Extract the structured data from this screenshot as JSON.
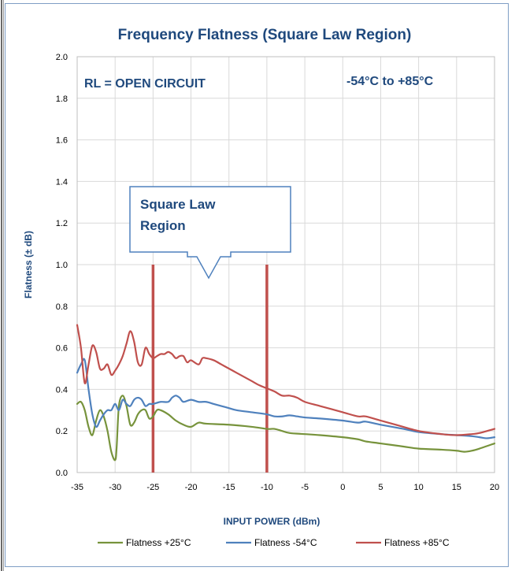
{
  "chart_data": {
    "type": "line",
    "title": "Frequency Flatness (Square Law Region)",
    "xlabel": "INPUT POWER (dBm)",
    "ylabel": "Flatness (± dB)",
    "xlim": [
      -35,
      20
    ],
    "ylim": [
      0,
      2.0
    ],
    "x_ticks": [
      -35,
      -30,
      -25,
      -20,
      -15,
      -10,
      -5,
      0,
      5,
      10,
      15,
      20
    ],
    "x_tick_labels": [
      "-35",
      "-30",
      "-25",
      "-20",
      "-15",
      "-10",
      "-5",
      "0",
      "5",
      "10",
      "15",
      "20"
    ],
    "y_ticks": [
      0,
      0.2,
      0.4,
      0.6,
      0.8,
      1.0,
      1.2,
      1.4,
      1.6,
      1.8,
      2.0
    ],
    "y_tick_labels": [
      "0.0",
      "0.2",
      "0.4",
      "0.6",
      "0.8",
      "1.0",
      "1.2",
      "1.4",
      "1.6",
      "1.8",
      "2.0"
    ],
    "grid": true,
    "legend_position": "bottom",
    "annotations": {
      "rl": "RL = OPEN CIRCUIT",
      "temp_range": "-54°C to +85°C",
      "callout_line1": "Square Law",
      "callout_line2": "Region"
    },
    "region_markers": [
      {
        "x": -25,
        "y_top": 1.0,
        "color": "#c0504d"
      },
      {
        "x": -10,
        "y_top": 1.0,
        "color": "#c0504d"
      }
    ],
    "series": [
      {
        "name": "Flatness +25°C",
        "color": "#77933c",
        "points": [
          [
            -35,
            0.33
          ],
          [
            -34.5,
            0.34
          ],
          [
            -34,
            0.3
          ],
          [
            -33.5,
            0.22
          ],
          [
            -33,
            0.18
          ],
          [
            -32.5,
            0.25
          ],
          [
            -32,
            0.3
          ],
          [
            -31.5,
            0.27
          ],
          [
            -31,
            0.2
          ],
          [
            -30.5,
            0.1
          ],
          [
            -30,
            0.06
          ],
          [
            -29.8,
            0.12
          ],
          [
            -29.5,
            0.32
          ],
          [
            -29,
            0.37
          ],
          [
            -28.5,
            0.32
          ],
          [
            -28,
            0.23
          ],
          [
            -27.5,
            0.24
          ],
          [
            -27,
            0.28
          ],
          [
            -26.5,
            0.3
          ],
          [
            -26,
            0.3
          ],
          [
            -25.5,
            0.26
          ],
          [
            -25,
            0.27
          ],
          [
            -24.5,
            0.3
          ],
          [
            -24,
            0.3
          ],
          [
            -23,
            0.28
          ],
          [
            -22,
            0.25
          ],
          [
            -21,
            0.23
          ],
          [
            -20,
            0.22
          ],
          [
            -19,
            0.24
          ],
          [
            -18,
            0.235
          ],
          [
            -15,
            0.23
          ],
          [
            -12,
            0.22
          ],
          [
            -10,
            0.21
          ],
          [
            -9,
            0.21
          ],
          [
            -8,
            0.2
          ],
          [
            -7,
            0.19
          ],
          [
            -5,
            0.185
          ],
          [
            -3,
            0.18
          ],
          [
            0,
            0.17
          ],
          [
            2,
            0.16
          ],
          [
            3,
            0.15
          ],
          [
            5,
            0.14
          ],
          [
            8,
            0.125
          ],
          [
            10,
            0.115
          ],
          [
            13,
            0.11
          ],
          [
            15,
            0.105
          ],
          [
            16,
            0.1
          ],
          [
            17,
            0.105
          ],
          [
            18,
            0.115
          ],
          [
            20,
            0.14
          ]
        ]
      },
      {
        "name": "Flatness -54°C",
        "color": "#4f81bd",
        "points": [
          [
            -35,
            0.48
          ],
          [
            -34.5,
            0.52
          ],
          [
            -34,
            0.54
          ],
          [
            -33.5,
            0.4
          ],
          [
            -33,
            0.28
          ],
          [
            -32.5,
            0.22
          ],
          [
            -32,
            0.25
          ],
          [
            -31.5,
            0.28
          ],
          [
            -31,
            0.3
          ],
          [
            -30.5,
            0.3
          ],
          [
            -30,
            0.33
          ],
          [
            -29.5,
            0.3
          ],
          [
            -29,
            0.35
          ],
          [
            -28.5,
            0.33
          ],
          [
            -28,
            0.32
          ],
          [
            -27.5,
            0.35
          ],
          [
            -27,
            0.36
          ],
          [
            -26.5,
            0.35
          ],
          [
            -26,
            0.32
          ],
          [
            -25.5,
            0.33
          ],
          [
            -25,
            0.33
          ],
          [
            -24,
            0.34
          ],
          [
            -23,
            0.34
          ],
          [
            -22.5,
            0.36
          ],
          [
            -22,
            0.37
          ],
          [
            -21.5,
            0.36
          ],
          [
            -21,
            0.34
          ],
          [
            -20,
            0.35
          ],
          [
            -19,
            0.34
          ],
          [
            -18,
            0.34
          ],
          [
            -17,
            0.33
          ],
          [
            -16,
            0.32
          ],
          [
            -15,
            0.31
          ],
          [
            -14,
            0.3
          ],
          [
            -12,
            0.29
          ],
          [
            -10,
            0.28
          ],
          [
            -9,
            0.27
          ],
          [
            -8,
            0.27
          ],
          [
            -7,
            0.275
          ],
          [
            -6,
            0.27
          ],
          [
            -5,
            0.265
          ],
          [
            -3,
            0.26
          ],
          [
            0,
            0.25
          ],
          [
            2,
            0.24
          ],
          [
            3,
            0.245
          ],
          [
            5,
            0.23
          ],
          [
            8,
            0.21
          ],
          [
            10,
            0.195
          ],
          [
            13,
            0.185
          ],
          [
            15,
            0.18
          ],
          [
            17,
            0.175
          ],
          [
            18,
            0.17
          ],
          [
            19,
            0.165
          ],
          [
            20,
            0.17
          ]
        ]
      },
      {
        "name": "Flatness +85°C",
        "color": "#c0504d",
        "points": [
          [
            -35,
            0.71
          ],
          [
            -34.5,
            0.6
          ],
          [
            -34,
            0.43
          ],
          [
            -33.5,
            0.52
          ],
          [
            -33,
            0.61
          ],
          [
            -32.5,
            0.58
          ],
          [
            -32,
            0.5
          ],
          [
            -31.5,
            0.5
          ],
          [
            -31,
            0.52
          ],
          [
            -30.5,
            0.47
          ],
          [
            -30,
            0.49
          ],
          [
            -29.5,
            0.52
          ],
          [
            -29,
            0.56
          ],
          [
            -28.5,
            0.62
          ],
          [
            -28,
            0.68
          ],
          [
            -27.5,
            0.63
          ],
          [
            -27,
            0.53
          ],
          [
            -26.5,
            0.52
          ],
          [
            -26,
            0.6
          ],
          [
            -25.5,
            0.57
          ],
          [
            -25,
            0.55
          ],
          [
            -24.5,
            0.56
          ],
          [
            -24,
            0.57
          ],
          [
            -23.5,
            0.57
          ],
          [
            -23,
            0.58
          ],
          [
            -22.5,
            0.57
          ],
          [
            -22,
            0.55
          ],
          [
            -21.5,
            0.56
          ],
          [
            -21,
            0.56
          ],
          [
            -20.5,
            0.53
          ],
          [
            -20,
            0.54
          ],
          [
            -19,
            0.52
          ],
          [
            -18.5,
            0.55
          ],
          [
            -18,
            0.55
          ],
          [
            -17,
            0.54
          ],
          [
            -16,
            0.52
          ],
          [
            -15,
            0.5
          ],
          [
            -14,
            0.48
          ],
          [
            -13,
            0.46
          ],
          [
            -12,
            0.44
          ],
          [
            -11,
            0.42
          ],
          [
            -10,
            0.405
          ],
          [
            -9,
            0.39
          ],
          [
            -8,
            0.37
          ],
          [
            -7,
            0.37
          ],
          [
            -6,
            0.36
          ],
          [
            -5,
            0.34
          ],
          [
            -3,
            0.32
          ],
          [
            0,
            0.29
          ],
          [
            2,
            0.27
          ],
          [
            3,
            0.27
          ],
          [
            5,
            0.25
          ],
          [
            7,
            0.23
          ],
          [
            10,
            0.2
          ],
          [
            13,
            0.185
          ],
          [
            15,
            0.18
          ],
          [
            17,
            0.185
          ],
          [
            18,
            0.19
          ],
          [
            20,
            0.21
          ]
        ]
      }
    ]
  }
}
